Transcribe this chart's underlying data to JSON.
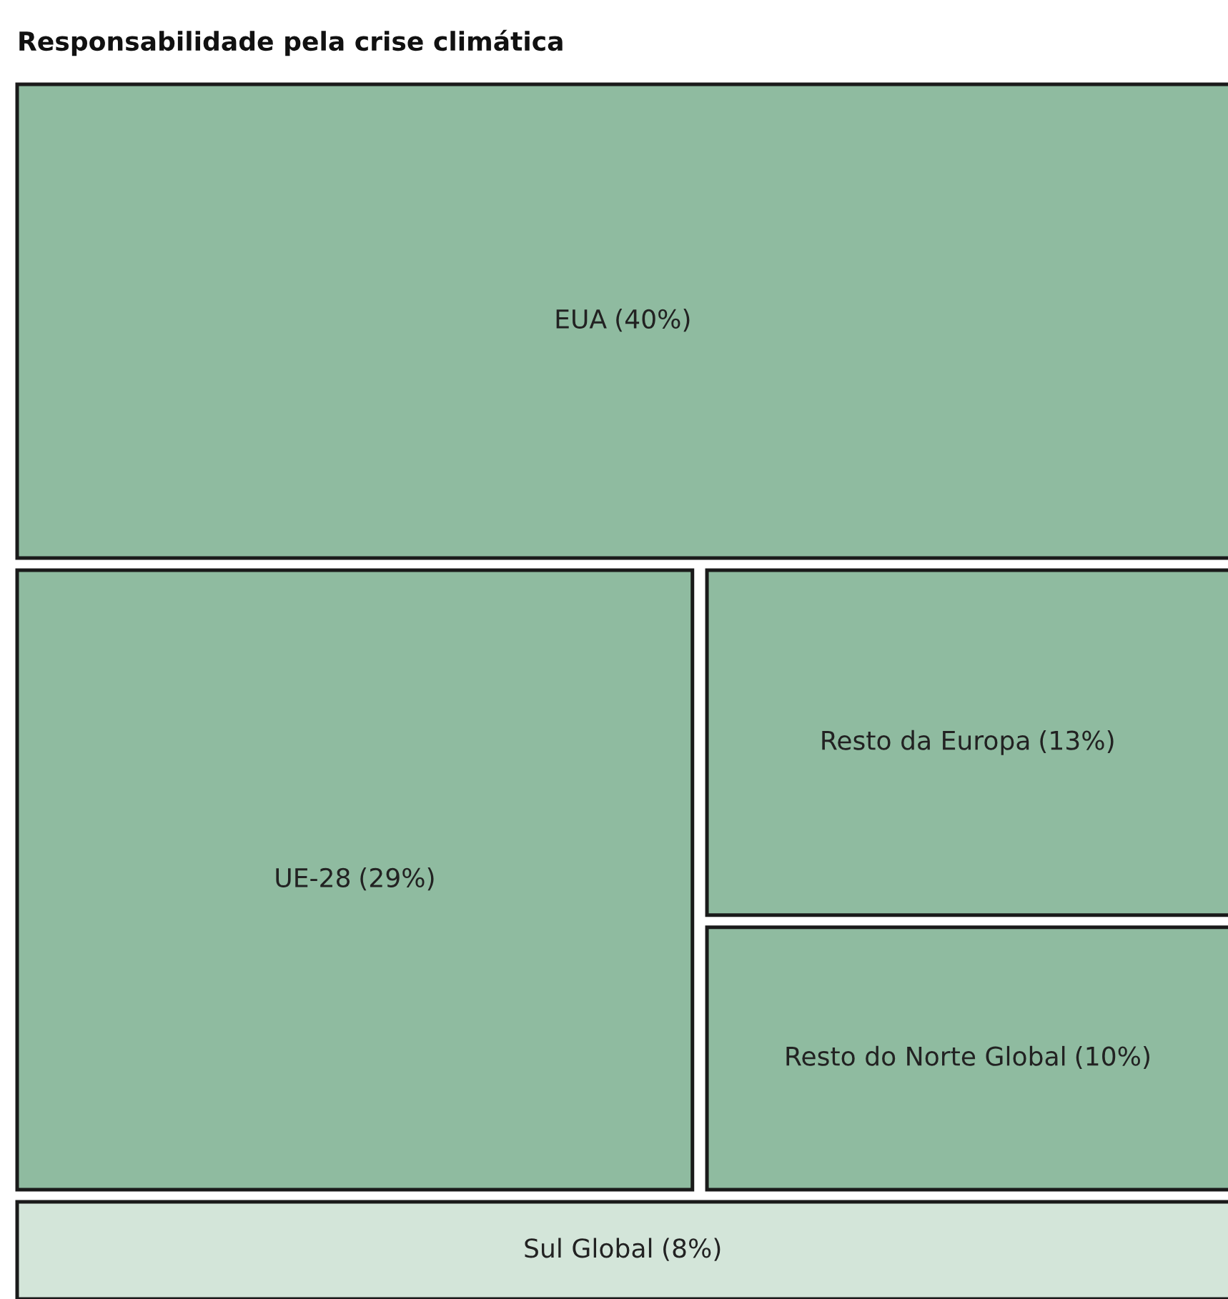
{
  "chart_data": {
    "type": "other",
    "title": "Responsabilidade pela crise climática",
    "categories": [
      "EUA",
      "UE-28",
      "Resto da Europa",
      "Resto do Norte Global",
      "Sul Global"
    ],
    "values": [
      40,
      29,
      13,
      10,
      8
    ],
    "value_labels": [
      "(40%)",
      "(29%)",
      "(13%)",
      "(10%)",
      "(8%)"
    ],
    "colors": [
      "#8fbba0",
      "#8fbba0",
      "#8fbba0",
      "#8fbba0",
      "#d3e5d9"
    ]
  }
}
